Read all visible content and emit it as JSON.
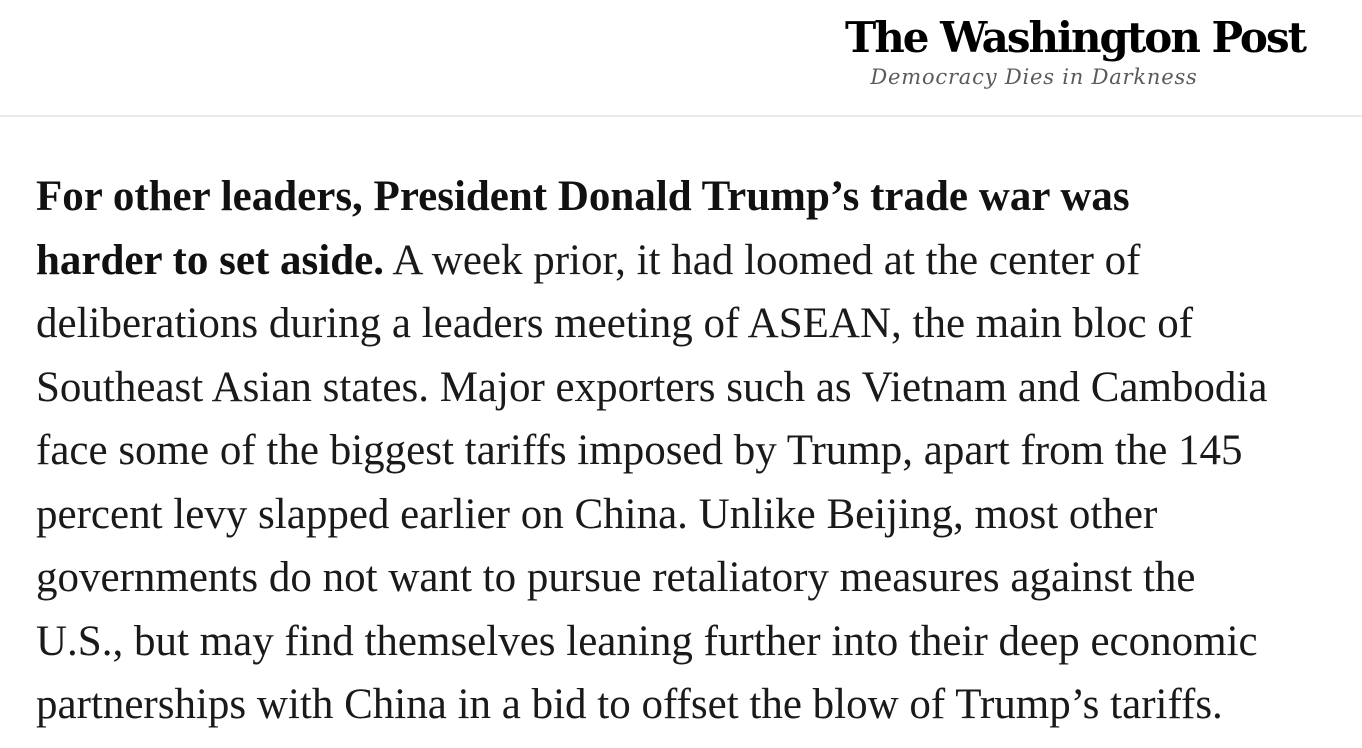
{
  "masthead": {
    "logo_text": "The Washington Post",
    "tagline": "Democracy Dies in Darkness"
  },
  "article": {
    "lines": [
      {
        "bold": "For other leaders, President Donald Trump’s trade war was",
        "regular": ""
      },
      {
        "bold": "harder to set aside.",
        "regular": " A week prior, it had loomed at the center of"
      },
      {
        "bold": "",
        "regular": "deliberations during a leaders meeting of ASEAN, the main bloc of"
      },
      {
        "bold": "",
        "regular": "Southeast Asian states. Major exporters such as Vietnam and Cambodia"
      },
      {
        "bold": "",
        "regular": "face some of the biggest tariffs imposed by Trump, apart from the 145"
      },
      {
        "bold": "",
        "regular": "percent levy slapped earlier on China. Unlike Beijing, most other"
      },
      {
        "bold": "",
        "regular": "governments do not want to pursue retaliatory measures against the"
      },
      {
        "bold": "",
        "regular": "U.S., but may find themselves leaning further into their deep economic"
      },
      {
        "bold": "",
        "regular": "partnerships with China in a bid to offset the blow of Trump’s tariffs."
      }
    ]
  },
  "colors": {
    "body_text": "#1a1a1a",
    "tagline_gray": "#5a5a5a",
    "divider_gray": "#e9e9e9",
    "logo_black": "#000000"
  }
}
